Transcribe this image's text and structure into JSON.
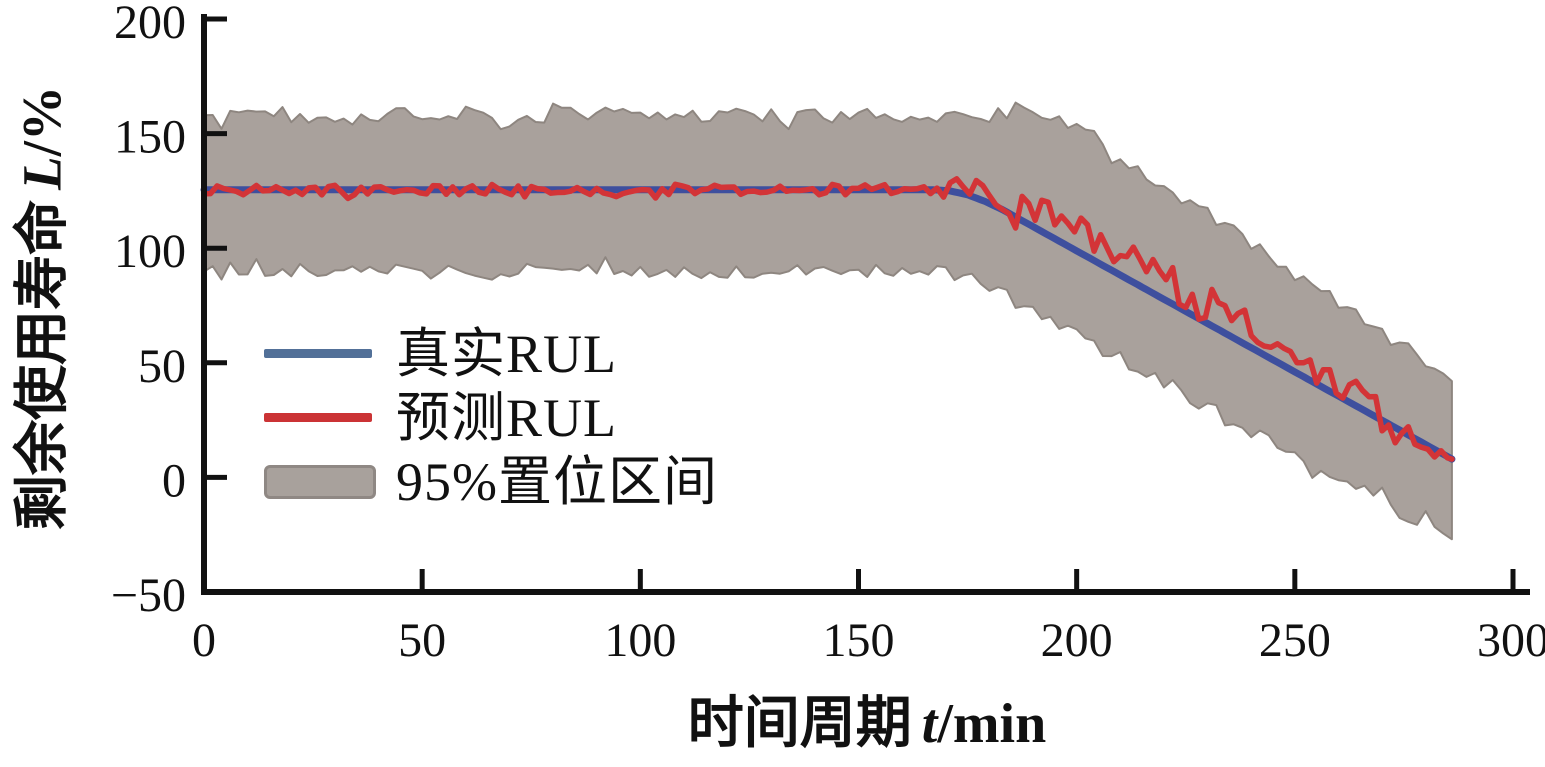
{
  "figure": {
    "kind": "scientific line chart with confidence band",
    "background": "#ffffff",
    "axis_color": "#111111"
  },
  "chart_data": {
    "type": "line",
    "title": "",
    "x_axis": {
      "label_cn": "时间周期",
      "label_var": "t",
      "label_unit": "/min",
      "range": [
        0,
        300
      ],
      "ticks": [
        0,
        50,
        100,
        150,
        200,
        250,
        300
      ],
      "tick_labels": [
        "0",
        "50",
        "100",
        "150",
        "200",
        "250",
        "300"
      ]
    },
    "y_axis": {
      "label_cn": "剩余使用寿命",
      "label_var": "L",
      "label_unit": "/%",
      "range": [
        -50,
        200
      ],
      "ticks": [
        -50,
        0,
        50,
        100,
        150,
        200
      ],
      "tick_labels": [
        "−50",
        "0",
        "50",
        "100",
        "150",
        "200"
      ]
    },
    "x_end": 286,
    "grid": false,
    "series": [
      {
        "name": "真实RUL",
        "type": "line",
        "color": "#3e4f9e",
        "line_width": 7,
        "anchors": [
          [
            0,
            125.5
          ],
          [
            167,
            125.5
          ],
          [
            171,
            125.0
          ],
          [
            175,
            123.3
          ],
          [
            179,
            120.4
          ],
          [
            183,
            116.8
          ],
          [
            286,
            8.0
          ]
        ]
      },
      {
        "name": "预测RUL",
        "type": "line",
        "color": "#d33437",
        "line_width": 5.5,
        "base": "真实RUL",
        "offset_anchors": [
          [
            0,
            0
          ],
          [
            167,
            0
          ],
          [
            174,
            2
          ],
          [
            182,
            5
          ],
          [
            190,
            8.5
          ],
          [
            205,
            11
          ],
          [
            220,
            12
          ],
          [
            235,
            10.5
          ],
          [
            248,
            8.5
          ],
          [
            260,
            5.5
          ],
          [
            270,
            3
          ],
          [
            279,
            1
          ],
          [
            286,
            0
          ]
        ],
        "noise": {
          "amp_pre_knee": 2.4,
          "amp_post_knee": 6.5,
          "knee_t": 165,
          "step": 1.5
        }
      },
      {
        "name": "95%置位区间",
        "type": "band",
        "fill_color": "#a9a19c",
        "edge_color": "#8e8680",
        "upper_anchors": [
          [
            0,
            158
          ],
          [
            189,
            158
          ],
          [
            194,
            156.5
          ],
          [
            199,
            153
          ],
          [
            204,
            148.5
          ],
          [
            286,
            42
          ]
        ],
        "lower_anchors": [
          [
            0,
            90
          ],
          [
            165,
            90
          ],
          [
            170,
            89
          ],
          [
            175,
            86.5
          ],
          [
            180,
            83
          ],
          [
            286,
            -27
          ]
        ],
        "noise_amp": 3.3,
        "step": 2
      }
    ],
    "key_points": {
      "flat_true_rul_value": 125.5,
      "degradation_knee_t": 170,
      "true_rul_at_end": 8,
      "band_upper_flat": 158,
      "band_lower_flat": 90,
      "band_upper_at_end": 42,
      "band_lower_at_end": -27
    },
    "legend": {
      "position": "inside-center-left",
      "items": [
        {
          "label": "真实RUL",
          "swatch": "line",
          "color": "#527098"
        },
        {
          "label": "预测RUL",
          "swatch": "line",
          "color": "#cb3335"
        },
        {
          "label": "95%置位区间",
          "swatch": "patch",
          "color": "#a8a19c",
          "border": "#8f8884"
        }
      ]
    }
  }
}
